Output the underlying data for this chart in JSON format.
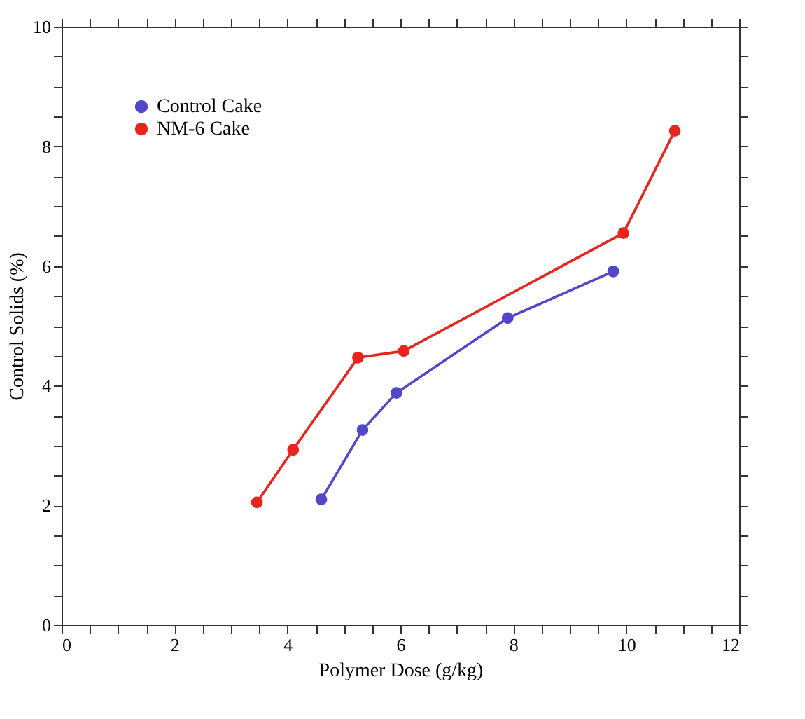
{
  "chart_data": {
    "type": "line",
    "xlabel": "Polymer Dose (g/kg)",
    "ylabel": "Control Solids (%)",
    "xlim": [
      0,
      12
    ],
    "ylim": [
      0,
      10
    ],
    "xticks": [
      0,
      {
        "value": 0.5,
        "label": null
      },
      {
        "value": 1,
        "label": null
      },
      {
        "value": 1.5,
        "label": null
      },
      2,
      {
        "value": 2.5,
        "label": null
      },
      {
        "value": 3,
        "label": null
      },
      {
        "value": 3.5,
        "label": null
      },
      4,
      {
        "value": 4.5,
        "label": null
      },
      {
        "value": 5,
        "label": null
      },
      {
        "value": 5.5,
        "label": null
      },
      6,
      {
        "value": 6.5,
        "label": null
      },
      {
        "value": 7,
        "label": null
      },
      {
        "value": 7.5,
        "label": null
      },
      8,
      {
        "value": 8.5,
        "label": null
      },
      {
        "value": 9,
        "label": null
      },
      {
        "value": 9.5,
        "label": null
      },
      10,
      {
        "value": 10.5,
        "label": null
      },
      {
        "value": 11,
        "label": null
      },
      {
        "value": 11.5,
        "label": null
      },
      12
    ],
    "yticks": [
      0,
      {
        "value": 0.5,
        "label": null
      },
      {
        "value": 1,
        "label": null
      },
      {
        "value": 1.5,
        "label": null
      },
      2,
      {
        "value": 2.5,
        "label": null
      },
      {
        "value": 3,
        "label": null
      },
      {
        "value": 3.5,
        "label": null
      },
      4,
      {
        "value": 4.5,
        "label": null
      },
      {
        "value": 5,
        "label": null
      },
      {
        "value": 5.5,
        "label": null
      },
      6,
      {
        "value": 6.5,
        "label": null
      },
      {
        "value": 7,
        "label": null
      },
      {
        "value": 7.5,
        "label": null
      },
      8,
      {
        "value": 8.5,
        "label": null
      },
      {
        "value": 9,
        "label": null
      },
      {
        "value": 9.5,
        "label": null
      },
      10
    ],
    "grid": false,
    "legend": "top left",
    "marker": "circle",
    "line_style": "solid",
    "series": [
      {
        "name": "Control Cake",
        "color": "#5048c8",
        "x": [
          4.6,
          5.33,
          5.93,
          7.9,
          9.77
        ],
        "values": [
          2.1,
          3.26,
          3.88,
          5.13,
          5.91
        ]
      },
      {
        "name": "NM-6 Cake",
        "color": "#e8241c",
        "x": [
          3.46,
          4.1,
          5.25,
          6.06,
          9.95,
          10.86
        ],
        "values": [
          2.05,
          2.93,
          4.47,
          4.58,
          6.55,
          8.26
        ]
      }
    ]
  }
}
